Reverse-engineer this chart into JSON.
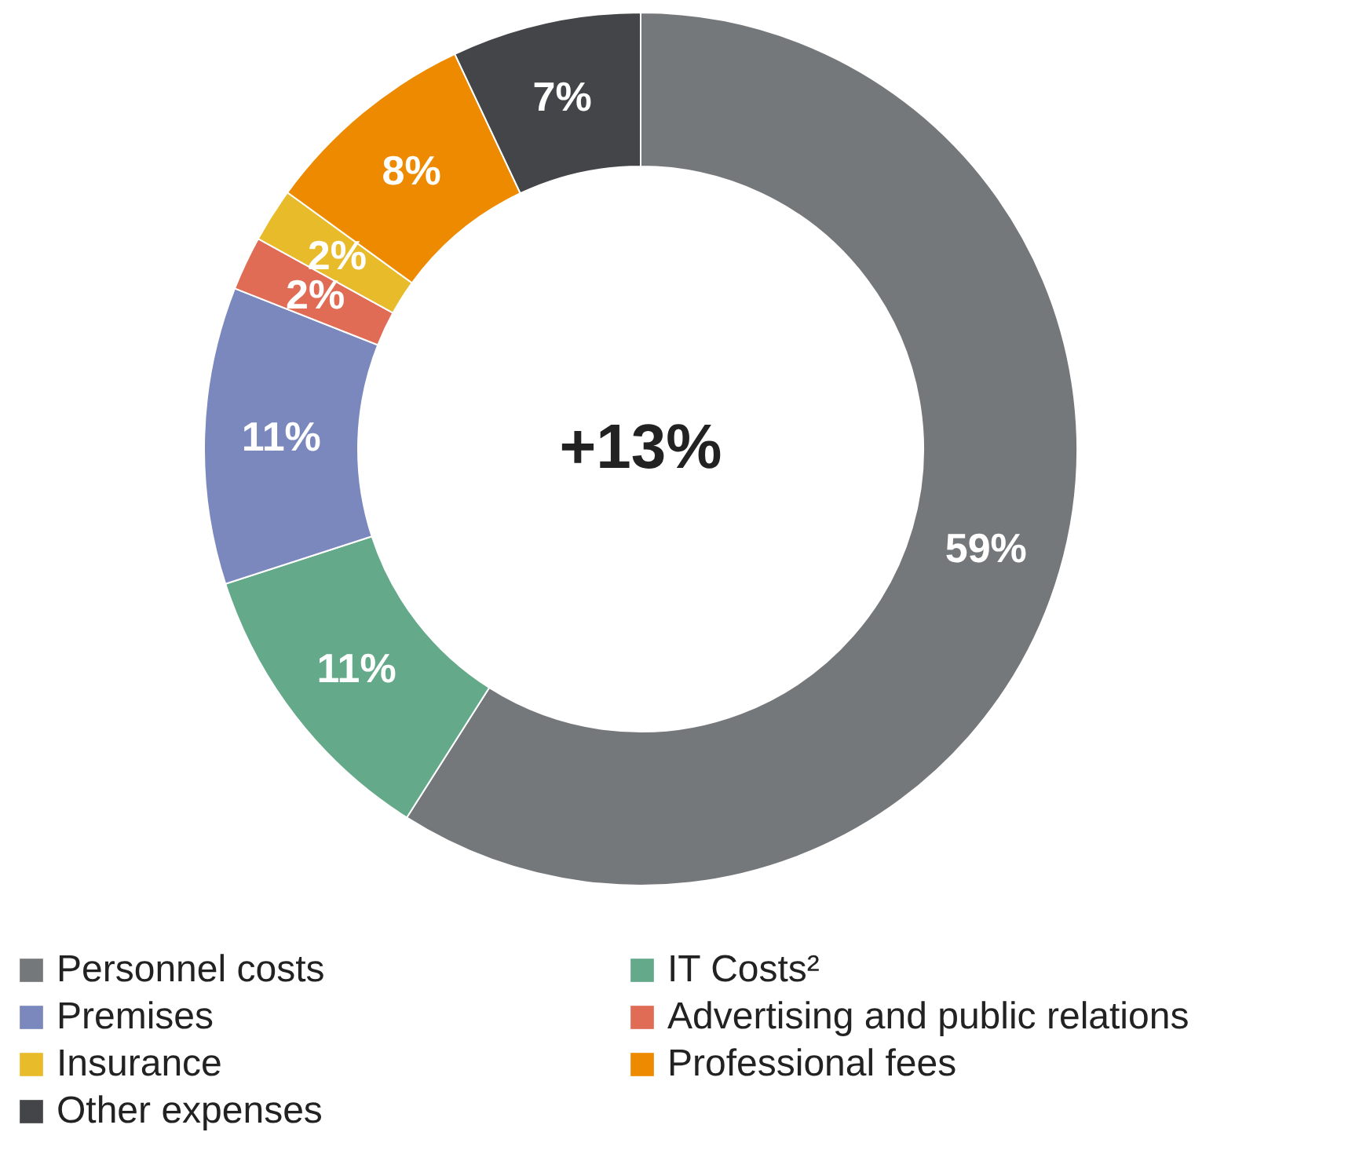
{
  "chart_data": {
    "type": "donut",
    "categories": [
      "Personnel costs",
      "IT Costs²",
      "Premises",
      "Advertising and public relations",
      "Insurance",
      "Professional fees",
      "Other expenses"
    ],
    "values": [
      59,
      11,
      11,
      2,
      2,
      8,
      7
    ],
    "value_labels": [
      "59%",
      "11%",
      "11%",
      "2%",
      "2%",
      "8%",
      "7%"
    ],
    "colors": [
      "#75787b",
      "#64a98a",
      "#7a88bd",
      "#e06c55",
      "#e8bb2a",
      "#ee8a00",
      "#444548"
    ],
    "annotations": [
      "+13%"
    ],
    "legend": "bottom"
  }
}
